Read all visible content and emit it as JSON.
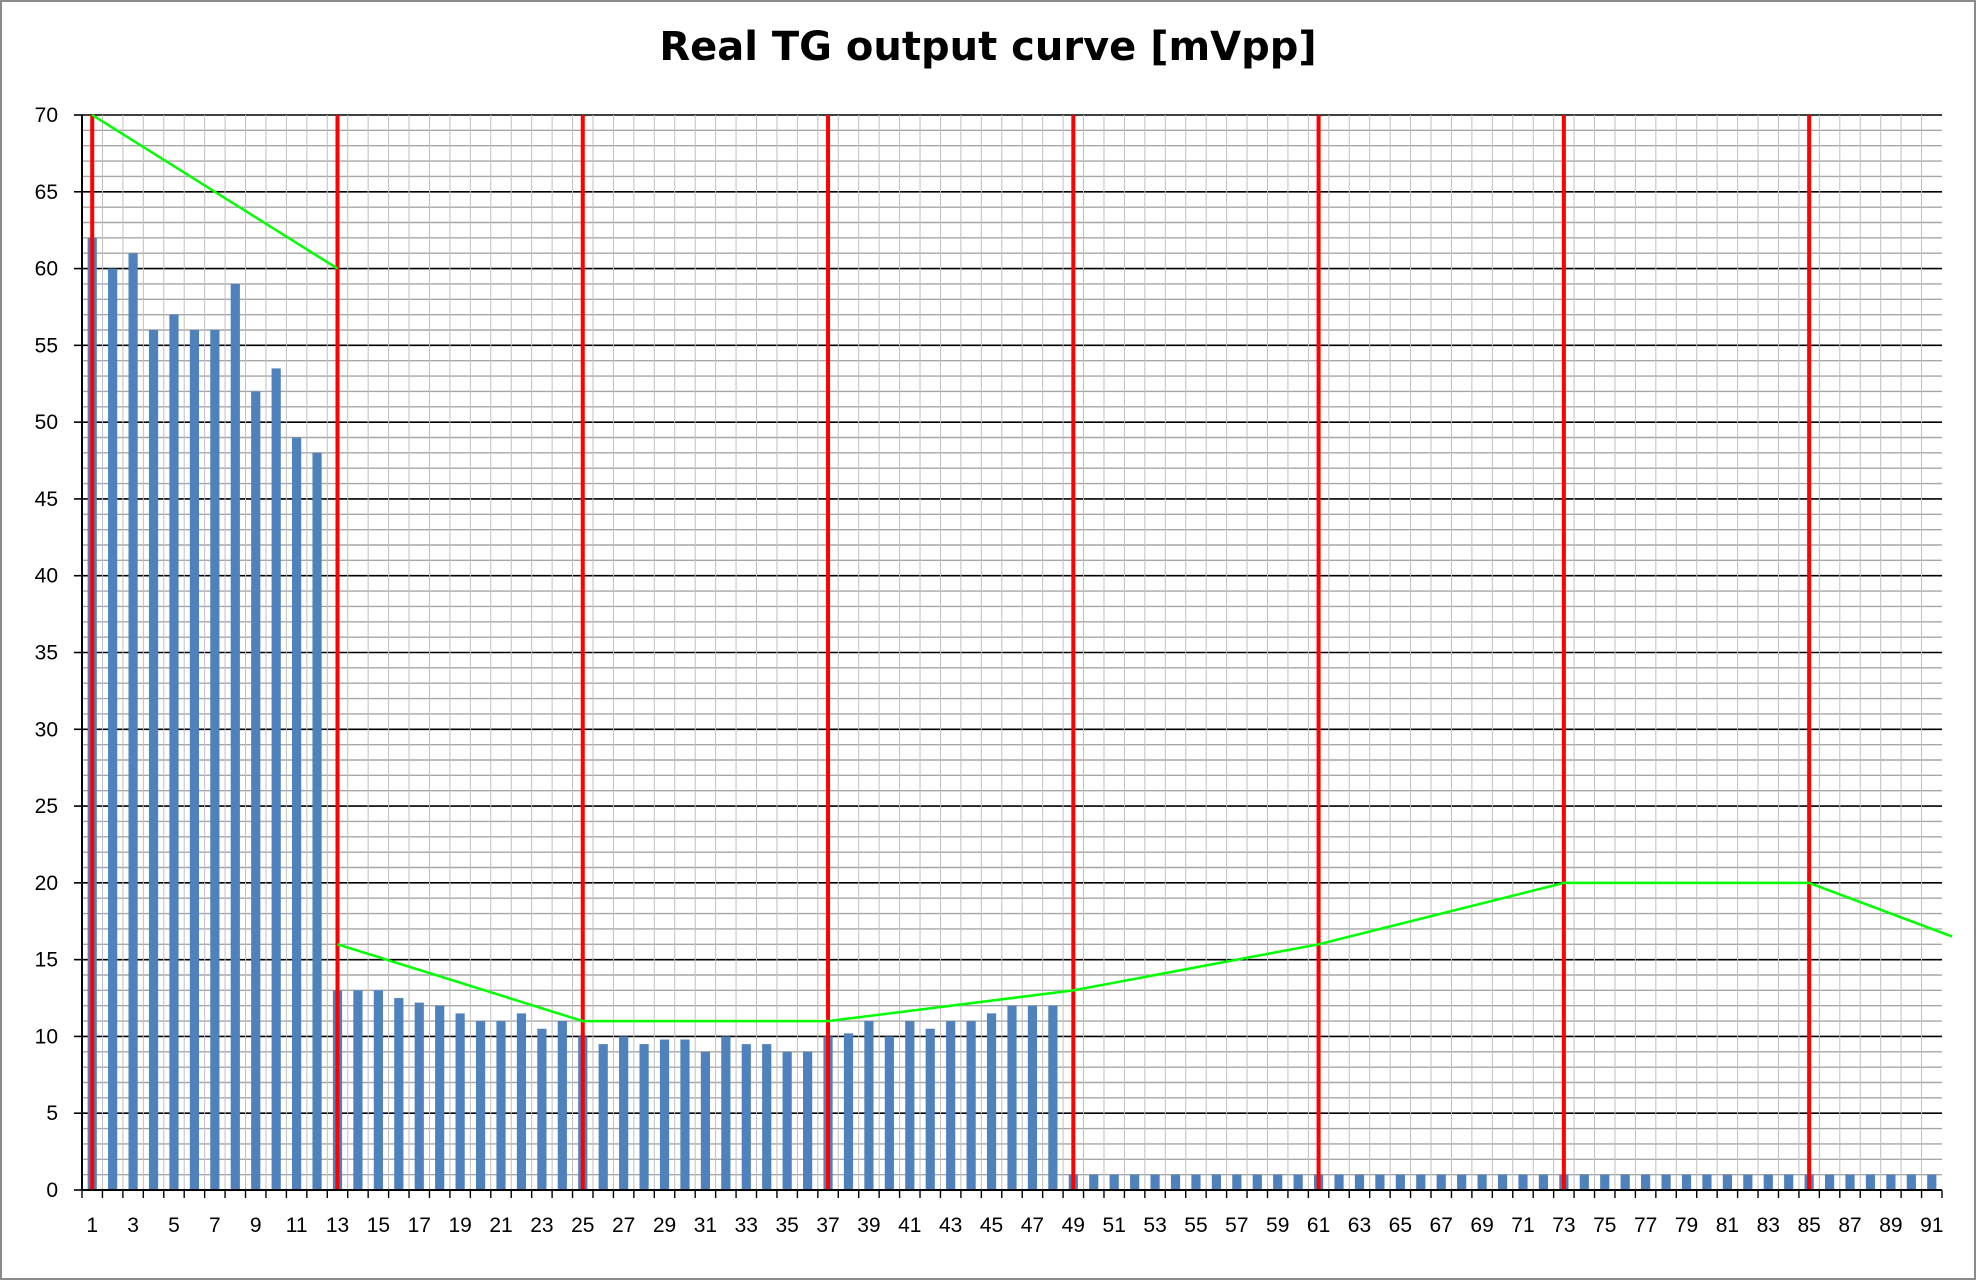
{
  "chart_data": {
    "type": "bar",
    "title": "Real TG output curve [mVpp]",
    "xlabel": "",
    "ylabel": "",
    "ylim": [
      0,
      70
    ],
    "y_ticks": [
      0,
      5,
      10,
      15,
      20,
      25,
      30,
      35,
      40,
      45,
      50,
      55,
      60,
      65,
      70
    ],
    "y_minor_step": 1,
    "grid": true,
    "legend": "none",
    "categories": [
      1,
      2,
      3,
      4,
      5,
      6,
      7,
      8,
      9,
      10,
      11,
      12,
      13,
      14,
      15,
      16,
      17,
      18,
      19,
      20,
      21,
      22,
      23,
      24,
      25,
      26,
      27,
      28,
      29,
      30,
      31,
      32,
      33,
      34,
      35,
      36,
      37,
      38,
      39,
      40,
      41,
      42,
      43,
      44,
      45,
      46,
      47,
      48,
      49,
      50,
      51,
      52,
      53,
      54,
      55,
      56,
      57,
      58,
      59,
      60,
      61,
      62,
      63,
      64,
      65,
      66,
      67,
      68,
      69,
      70,
      71,
      72,
      73,
      74,
      75,
      76,
      77,
      78,
      79,
      80,
      81,
      82,
      83,
      84,
      85,
      86,
      87,
      88,
      89,
      90,
      91
    ],
    "x_tick_labels_every": 2,
    "series": [
      {
        "type": "bar",
        "color": "#4f81bd",
        "values": [
          62,
          60,
          61,
          56,
          57,
          56,
          56,
          59,
          52,
          53.5,
          49,
          48,
          13,
          13,
          13,
          12.5,
          12.2,
          12,
          11.5,
          11,
          11,
          11.5,
          10.5,
          11,
          10,
          9.5,
          10,
          9.5,
          9.8,
          9.8,
          9,
          10,
          9.5,
          9.5,
          9,
          9,
          10,
          10.2,
          11,
          10,
          11,
          10.5,
          11,
          11,
          11.5,
          12,
          12,
          12,
          1,
          1,
          1,
          1,
          1,
          1,
          1,
          1,
          1,
          1,
          1,
          1,
          1,
          1,
          1,
          1,
          1,
          1,
          1,
          1,
          1,
          1,
          1,
          1,
          1,
          1,
          1,
          1,
          1,
          1,
          1,
          1,
          1,
          1,
          1,
          1,
          1,
          1,
          1,
          1,
          1,
          1,
          1
        ]
      },
      {
        "type": "line",
        "color": "#00ff00",
        "segments": [
          [
            [
              0.5,
              70
            ],
            [
              12.5,
              60
            ]
          ],
          [
            [
              12.5,
              16
            ],
            [
              24.5,
              11
            ],
            [
              36.5,
              11
            ],
            [
              48.5,
              13
            ],
            [
              60.5,
              16
            ],
            [
              72.5,
              20
            ],
            [
              84.5,
              20
            ],
            [
              91.5,
              16.5
            ]
          ]
        ]
      }
    ],
    "vertical_markers": {
      "color": "#ff0000",
      "at": [
        0.5,
        12.5,
        24.5,
        36.5,
        48.5,
        60.5,
        72.5,
        84.5
      ]
    }
  }
}
